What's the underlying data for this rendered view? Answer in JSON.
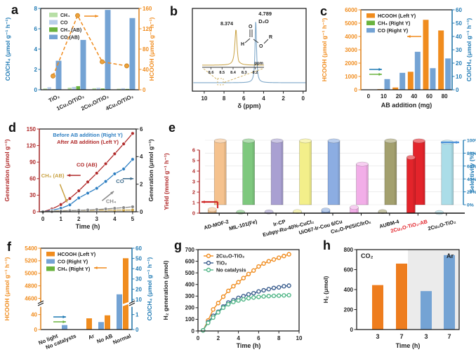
{
  "panels": {
    "a": {
      "letter": "a"
    },
    "b": {
      "letter": "b"
    },
    "c": {
      "letter": "c"
    },
    "d": {
      "letter": "d"
    },
    "e": {
      "letter": "e"
    },
    "f": {
      "letter": "f"
    },
    "g": {
      "letter": "g"
    },
    "h": {
      "letter": "h"
    }
  },
  "colors": {
    "orange": "#f08c1e",
    "steel_blue": "#74a3d4",
    "light_blue": "#b9cfe9",
    "light_green": "#b7dfa6",
    "green": "#6ab33e",
    "axis_blue": "#1f7ab4",
    "dark_red": "#b02a2a",
    "series_blue": "#2e7fc2",
    "tan": "#c9a243",
    "gray": "#8a8a8a",
    "navy": "#3c5f8f",
    "mint": "#52b788",
    "red": "#e3242b"
  },
  "chart_data": [
    {
      "id": "a",
      "type": "bar+line",
      "categories": [
        "TiO₂",
        "1Cu₂O/TiO₂",
        "2Cu₂O/TiO₂",
        "4Cu₂O/TiO₂"
      ],
      "bar_series": [
        {
          "name": "CH₄",
          "color": "#b7dfa6",
          "axis": "left",
          "values": [
            0.12,
            0.2,
            0.15,
            0.1
          ]
        },
        {
          "name": "CO",
          "color": "#b9cfe9",
          "axis": "left",
          "values": [
            0.25,
            0.28,
            0.2,
            0.15
          ]
        },
        {
          "name": "CH₄ (AB)",
          "color": "#6ab33e",
          "axis": "left",
          "values": [
            0.05,
            0.35,
            0.12,
            0.08
          ]
        },
        {
          "name": "CO (AB)",
          "color": "#74a3d4",
          "axis": "left",
          "values": [
            2.85,
            4.9,
            7.85,
            7.05
          ]
        }
      ],
      "line_series": {
        "name": "HCOOH",
        "color": "#f08c1e",
        "axis": "right",
        "values": [
          27,
          146,
          55,
          47
        ]
      },
      "ylabel_left": "CO/CH₄ (μmol g⁻¹ h⁻¹)",
      "ylim_left": [
        0,
        8
      ],
      "yticks_left": [
        0,
        2,
        4,
        6,
        8
      ],
      "ylabel_right": "HCOOH (μmol g⁻¹ h⁻¹)",
      "ylim_right": [
        0,
        160
      ],
      "yticks_right": [
        0,
        40,
        80,
        120,
        160
      ]
    },
    {
      "id": "b",
      "type": "nmr-spectrum",
      "xlabel": "δ (ppm)",
      "xticks": [
        10,
        8,
        6,
        4,
        2,
        0
      ],
      "xlim": [
        11.2,
        -0.3
      ],
      "main_peak": {
        "ppm": 4.789,
        "label": "4.789",
        "sublabel": "D₂O"
      },
      "inset": {
        "peak_ppm": 8.374,
        "peak_label": "8.374",
        "xticks": [
          8.6,
          8.5,
          8.4,
          8.3,
          8.2
        ],
        "xunit": "ppm",
        "structure_atoms": [
          "H",
          "O",
          "O",
          "R"
        ]
      },
      "line_color": "#7fa8c9",
      "inset_color": "#c9a243"
    },
    {
      "id": "c",
      "type": "bar",
      "categories": [
        "0",
        "10",
        "20",
        "40",
        "60",
        "80"
      ],
      "xlabel": "AB addition (mg)",
      "series": [
        {
          "name": "HCOOH (Left Y)",
          "color": "#f08c1e",
          "axis": "left",
          "values": [
            0,
            50,
            170,
            1350,
            5250,
            4450
          ]
        },
        {
          "name": "CH₄ (Right Y)",
          "color": "#6ab33e",
          "axis": "right",
          "values": [
            0,
            0,
            0,
            0,
            0,
            0
          ]
        },
        {
          "name": "CO (Right Y)",
          "color": "#74a3d4",
          "axis": "right",
          "values": [
            0,
            8,
            12.7,
            28.5,
            16.2,
            23.5
          ]
        }
      ],
      "ylabel_left": "HCOOH (μmol g⁻¹ h⁻¹)",
      "ylim_left": [
        0,
        6000
      ],
      "yticks_left": [
        0,
        1000,
        2000,
        3000,
        4000,
        5000,
        6000
      ],
      "ylabel_right": "CO/CH₄ (μmol g⁻¹ h⁻¹)",
      "ylim_right": [
        0,
        60
      ],
      "yticks_right": [
        0,
        10,
        20,
        30,
        40,
        50,
        60
      ]
    },
    {
      "id": "d",
      "type": "dual-line",
      "xlabel": "Time (h)",
      "xlim": [
        -0.2,
        5.2
      ],
      "xticks": [
        0,
        1,
        2,
        3,
        4,
        5
      ],
      "ylabel_left": "Generation (μmol g⁻¹)",
      "ylim_left": [
        0,
        150
      ],
      "yticks_left": [
        0,
        30,
        60,
        90,
        120,
        150
      ],
      "ylabel_right": "Generation (μmol g⁻¹)",
      "ylim_right": [
        0,
        6
      ],
      "yticks_right": [
        0,
        2,
        4,
        6
      ],
      "legend": [
        {
          "text": "Before AB addition (Right Y)",
          "color": "#2e7fc2"
        },
        {
          "text": "After AB addition (Left Y)",
          "color": "#b02a2a"
        }
      ],
      "x": [
        0,
        0.5,
        1,
        1.5,
        2,
        2.5,
        3,
        3.5,
        4,
        4.5,
        5
      ],
      "series": [
        {
          "name": "CO (AB)",
          "axis": "left",
          "color": "#b02a2a",
          "values": [
            0,
            5,
            13,
            24,
            38,
            54,
            70,
            87,
            105,
            123,
            142
          ]
        },
        {
          "name": "CO",
          "axis": "right",
          "color": "#2e7fc2",
          "values": [
            0,
            0.1,
            0.25,
            0.5,
            1.0,
            1.35,
            1.7,
            2.2,
            2.75,
            3.1,
            3.8
          ]
        },
        {
          "name": "CH₄ (AB)",
          "axis": "left",
          "color": "#c9a243",
          "values": [
            0,
            1,
            1.8,
            2.2,
            2.5,
            2.6,
            2.8,
            2.9,
            3,
            3,
            3.1
          ]
        },
        {
          "name": "CH₄",
          "axis": "right",
          "color": "#8a8a8a",
          "values": [
            0,
            0.02,
            0.05,
            0.08,
            0.1,
            0.13,
            0.16,
            0.2,
            0.25,
            0.3,
            0.36
          ]
        }
      ],
      "annotations": [
        {
          "text": "CO (AB)",
          "color": "#b02a2a",
          "x": 2.45,
          "y": 82,
          "ax1": 2.1,
          "ay1": 66,
          "ax2": 1.35,
          "ay2": 66
        },
        {
          "text": "CO",
          "color": "#3d6b8c",
          "x": 4.3,
          "y": 52,
          "ax1": 4.45,
          "ay1": 60,
          "ax2": 5.05,
          "ay2": 60
        },
        {
          "text": "CH₄ (AB)",
          "color": "#c9a243",
          "x": 0.55,
          "y": 62,
          "ax1": 0.95,
          "ay1": 50,
          "ax2": 1.35,
          "ay2": 17
        },
        {
          "text": "CH₄",
          "color": "#8a8a8a",
          "x": 3.8,
          "y": 16,
          "ax1": 3.3,
          "ay1": 20,
          "ax2": 3.95,
          "ay2": 37
        }
      ]
    },
    {
      "id": "e",
      "type": "3d-bar",
      "categories": [
        "AD-MOF-2",
        "MIL-101(Fe)",
        "Ir-CP",
        "Eubpy-Ru-40%-CuCl₂",
        "UiO67-Ir-Cou 6/Cu",
        "Cu₂O-Pt/SiC/IrOₓ",
        "AUBM-4",
        "2Cu₂O-TiO₂-AB",
        "2Cu₂O-TiO₂"
      ],
      "category_colors": [
        "#f5c28e",
        "#7ec87e",
        "#a9a0d2",
        "#f3ef8a",
        "#8cade2",
        "#f2aee8",
        "#a3a06e",
        "#e3242b",
        "#abdde8"
      ],
      "highlight_index": 7,
      "selectivity": [
        99,
        99,
        99,
        99,
        99,
        63,
        99,
        99,
        97
      ],
      "yield": [
        0.35,
        0.1,
        0.12,
        0.15,
        0.3,
        0.55,
        0.15,
        5.3,
        0.06
      ],
      "ylabel_left": "Yield (mmol g⁻¹ h⁻¹)",
      "ylim_left": [
        0,
        6
      ],
      "yticks_left": [
        0,
        1,
        2,
        3,
        4,
        5,
        6
      ],
      "ylabel_right": "Selectivity (%)",
      "yticks_right_labels": [
        "0%",
        "20%",
        "40%",
        "60%",
        "80%",
        "100%"
      ],
      "yticks_right": [
        0,
        20,
        40,
        60,
        80,
        100
      ]
    },
    {
      "id": "f",
      "type": "broken-bar",
      "categories": [
        "No light",
        "No catalysts",
        "Ar",
        "No AB",
        "Normal"
      ],
      "series": [
        {
          "name": "HCOOH (Left Y)",
          "color": "#f08c1e",
          "axis": "left",
          "values": [
            0,
            0,
            30,
            38,
            5240
          ]
        },
        {
          "name": "CO (Right Y)",
          "color": "#74a3d4",
          "axis": "right",
          "values": [
            0,
            0.3,
            0,
            0.5,
            15
          ]
        },
        {
          "name": "CH₄ (Right Y)",
          "color": "#6ab33e",
          "axis": "right",
          "values": [
            0,
            0,
            0,
            0,
            0.2
          ]
        }
      ],
      "ylabel_left": "HCOOH (μmol g⁻¹ h⁻¹)",
      "yticks_left_lower": [
        0,
        40
      ],
      "yticks_left_upper": [
        4600,
        4800,
        5000,
        5200,
        5400
      ],
      "ylim_left_lower": [
        0,
        60
      ],
      "ylim_left_upper": [
        4550,
        5400
      ],
      "ylabel_right": "CO/CH₄ (μmol g⁻¹ h⁻¹)",
      "yticks_right_lower": [
        0,
        1
      ],
      "yticks_right_upper": [
        10,
        20,
        30,
        40,
        50,
        60
      ],
      "ylim_right_lower": [
        0,
        1.5
      ],
      "ylim_right_upper": [
        8,
        60
      ]
    },
    {
      "id": "g",
      "type": "line",
      "xlabel": "Time (h)",
      "ylabel": "H₂ generation (μmol)",
      "xlim": [
        0,
        10
      ],
      "xticks": [
        0,
        2,
        4,
        6,
        8,
        10
      ],
      "ylim": [
        0,
        700
      ],
      "yticks": [
        0,
        100,
        200,
        300,
        400,
        500,
        600,
        700
      ],
      "x": [
        0.5,
        1,
        1.5,
        2,
        2.5,
        3,
        3.5,
        4,
        4.5,
        5,
        5.5,
        6,
        6.5,
        7,
        7.5,
        8,
        8.5,
        9
      ],
      "series": [
        {
          "name": "2Cu₂O-TiO₂",
          "color": "#f08c1e",
          "values": [
            5,
            90,
            185,
            240,
            295,
            345,
            385,
            420,
            455,
            490,
            520,
            555,
            580,
            600,
            615,
            630,
            645,
            660
          ]
        },
        {
          "name": "TiO₂",
          "color": "#3c5f8f",
          "values": [
            5,
            75,
            130,
            165,
            210,
            245,
            265,
            285,
            300,
            315,
            325,
            340,
            350,
            360,
            370,
            375,
            385,
            390
          ]
        },
        {
          "name": "No catalysis",
          "color": "#52b788",
          "values": [
            5,
            70,
            115,
            160,
            200,
            230,
            250,
            262,
            272,
            282,
            288,
            293,
            297,
            300,
            302,
            304,
            306,
            308
          ]
        }
      ]
    },
    {
      "id": "h",
      "type": "grouped-bar",
      "ylabel": "H₂ (μmol)",
      "xlabel": "Time (h)",
      "ylim": [
        0,
        800
      ],
      "yticks": [
        0,
        200,
        400,
        600,
        800
      ],
      "groups": [
        {
          "label": "CO₂",
          "color": "#ee7d1e",
          "shaded": false,
          "bars": [
            {
              "x": "3",
              "value": 445
            },
            {
              "x": "7",
              "value": 660
            }
          ]
        },
        {
          "label": "Ar",
          "color": "#74a3d4",
          "shaded": true,
          "bars": [
            {
              "x": "3",
              "value": 385
            },
            {
              "x": "7",
              "value": 745
            }
          ]
        }
      ]
    }
  ]
}
